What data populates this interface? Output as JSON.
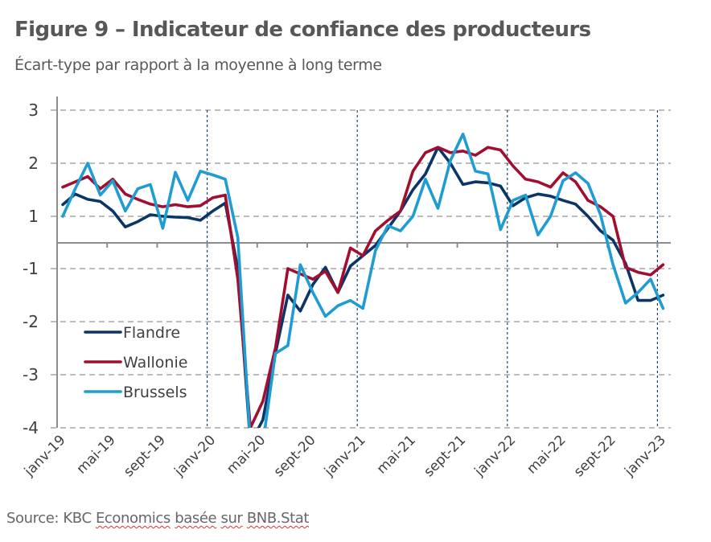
{
  "figure": {
    "title": "Figure 9 – Indicateur de confiance des producteurs",
    "subtitle": "Écart-type par rapport à la moyenne à long terme",
    "source_prefix": "Source: KBC ",
    "source_words": [
      "Economics",
      "basée",
      "sur",
      "BNB.Stat"
    ]
  },
  "chart_data": {
    "type": "line",
    "title": "Figure 9 – Indicateur de confiance des producteurs",
    "subtitle": "Écart-type par rapport à la moyenne à long terme",
    "xlabel": "",
    "ylabel": "Écart-type par rapport à la moyenne à long terme",
    "y_tick_labels": [
      "3",
      "2",
      "1",
      "-1",
      "-2",
      "-3",
      "-4"
    ],
    "y_tick_values": [
      3,
      2,
      1,
      -1,
      -2,
      -3,
      -4
    ],
    "y_axis_note": "Axis labels skip 0; the horizontal category axis sits midway between 1 and -1",
    "ylim": [
      -4,
      3
    ],
    "grid": "horizontal dashed",
    "legend_position": "bottom-left inside plot",
    "x_tick_labels": [
      "janv-19",
      "mai-19",
      "sept-19",
      "janv-20",
      "mai-20",
      "sept-20",
      "janv-21",
      "mai-21",
      "sept-21",
      "janv-22",
      "mai-22",
      "sept-22",
      "janv-23"
    ],
    "vertical_markers": [
      "janv-20",
      "janv-21",
      "janv-22",
      "janv-23"
    ],
    "x": [
      "janv-19",
      "févr-19",
      "mars-19",
      "avr-19",
      "mai-19",
      "juin-19",
      "juil-19",
      "août-19",
      "sept-19",
      "oct-19",
      "nov-19",
      "déc-19",
      "janv-20",
      "févr-20",
      "mars-20",
      "avr-20",
      "mai-20",
      "juin-20",
      "juil-20",
      "août-20",
      "sept-20",
      "oct-20",
      "nov-20",
      "déc-20",
      "janv-21",
      "févr-21",
      "mars-21",
      "avr-21",
      "mai-21",
      "juin-21",
      "juil-21",
      "août-21",
      "sept-21",
      "oct-21",
      "nov-21",
      "déc-21",
      "janv-22",
      "févr-22",
      "mars-22",
      "avr-22",
      "mai-22",
      "juin-22",
      "juil-22",
      "août-22",
      "sept-22",
      "oct-22",
      "nov-22",
      "déc-22",
      "janv-23"
    ],
    "series": [
      {
        "name": "Flandre",
        "color": "#0b3567",
        "values": [
          1.22,
          1.42,
          1.32,
          1.28,
          1.1,
          0.6,
          0.8,
          1.03,
          1.0,
          0.97,
          0.95,
          0.85,
          1.1,
          1.25,
          -1.0,
          -4.3,
          -3.85,
          -2.6,
          -1.5,
          -1.8,
          -1.3,
          -0.95,
          -1.45,
          -0.9,
          -0.5,
          -0.1,
          0.55,
          1.1,
          1.5,
          1.8,
          2.3,
          2.0,
          1.6,
          1.65,
          1.63,
          1.57,
          1.2,
          1.35,
          1.42,
          1.38,
          1.3,
          1.23,
          1.0,
          0.45,
          0.1,
          -0.8,
          -1.6,
          -1.6,
          -1.5
        ]
      },
      {
        "name": "Wallonie",
        "color": "#a20e30",
        "values": [
          1.55,
          1.65,
          1.75,
          1.52,
          1.7,
          1.42,
          1.32,
          1.23,
          1.18,
          1.22,
          1.18,
          1.2,
          1.35,
          1.4,
          -1.2,
          -4.0,
          -3.5,
          -2.5,
          -1.0,
          -1.1,
          -1.2,
          -1.05,
          -1.45,
          -0.2,
          -0.5,
          0.45,
          0.85,
          1.1,
          1.85,
          2.2,
          2.3,
          2.2,
          2.23,
          2.15,
          2.3,
          2.25,
          1.95,
          1.7,
          1.65,
          1.55,
          1.82,
          1.65,
          1.3,
          1.18,
          1.0,
          -0.95,
          -1.07,
          -1.12,
          -0.85
        ]
      },
      {
        "name": "Brussels",
        "color": "#1f9dd3",
        "values": [
          1.0,
          1.52,
          2.0,
          1.4,
          1.67,
          1.1,
          1.52,
          1.6,
          0.55,
          1.83,
          1.3,
          1.85,
          1.78,
          1.7,
          0.2,
          -4.3,
          -4.3,
          -2.6,
          -2.45,
          -0.85,
          -1.45,
          -1.9,
          -1.7,
          -1.6,
          -1.75,
          -0.3,
          0.65,
          0.45,
          1.0,
          1.7,
          1.15,
          2.05,
          2.55,
          1.85,
          1.8,
          0.5,
          1.3,
          1.4,
          0.3,
          1.0,
          1.67,
          1.82,
          1.62,
          1.03,
          -0.85,
          -1.65,
          -1.45,
          -1.2,
          -1.75
        ]
      }
    ]
  }
}
